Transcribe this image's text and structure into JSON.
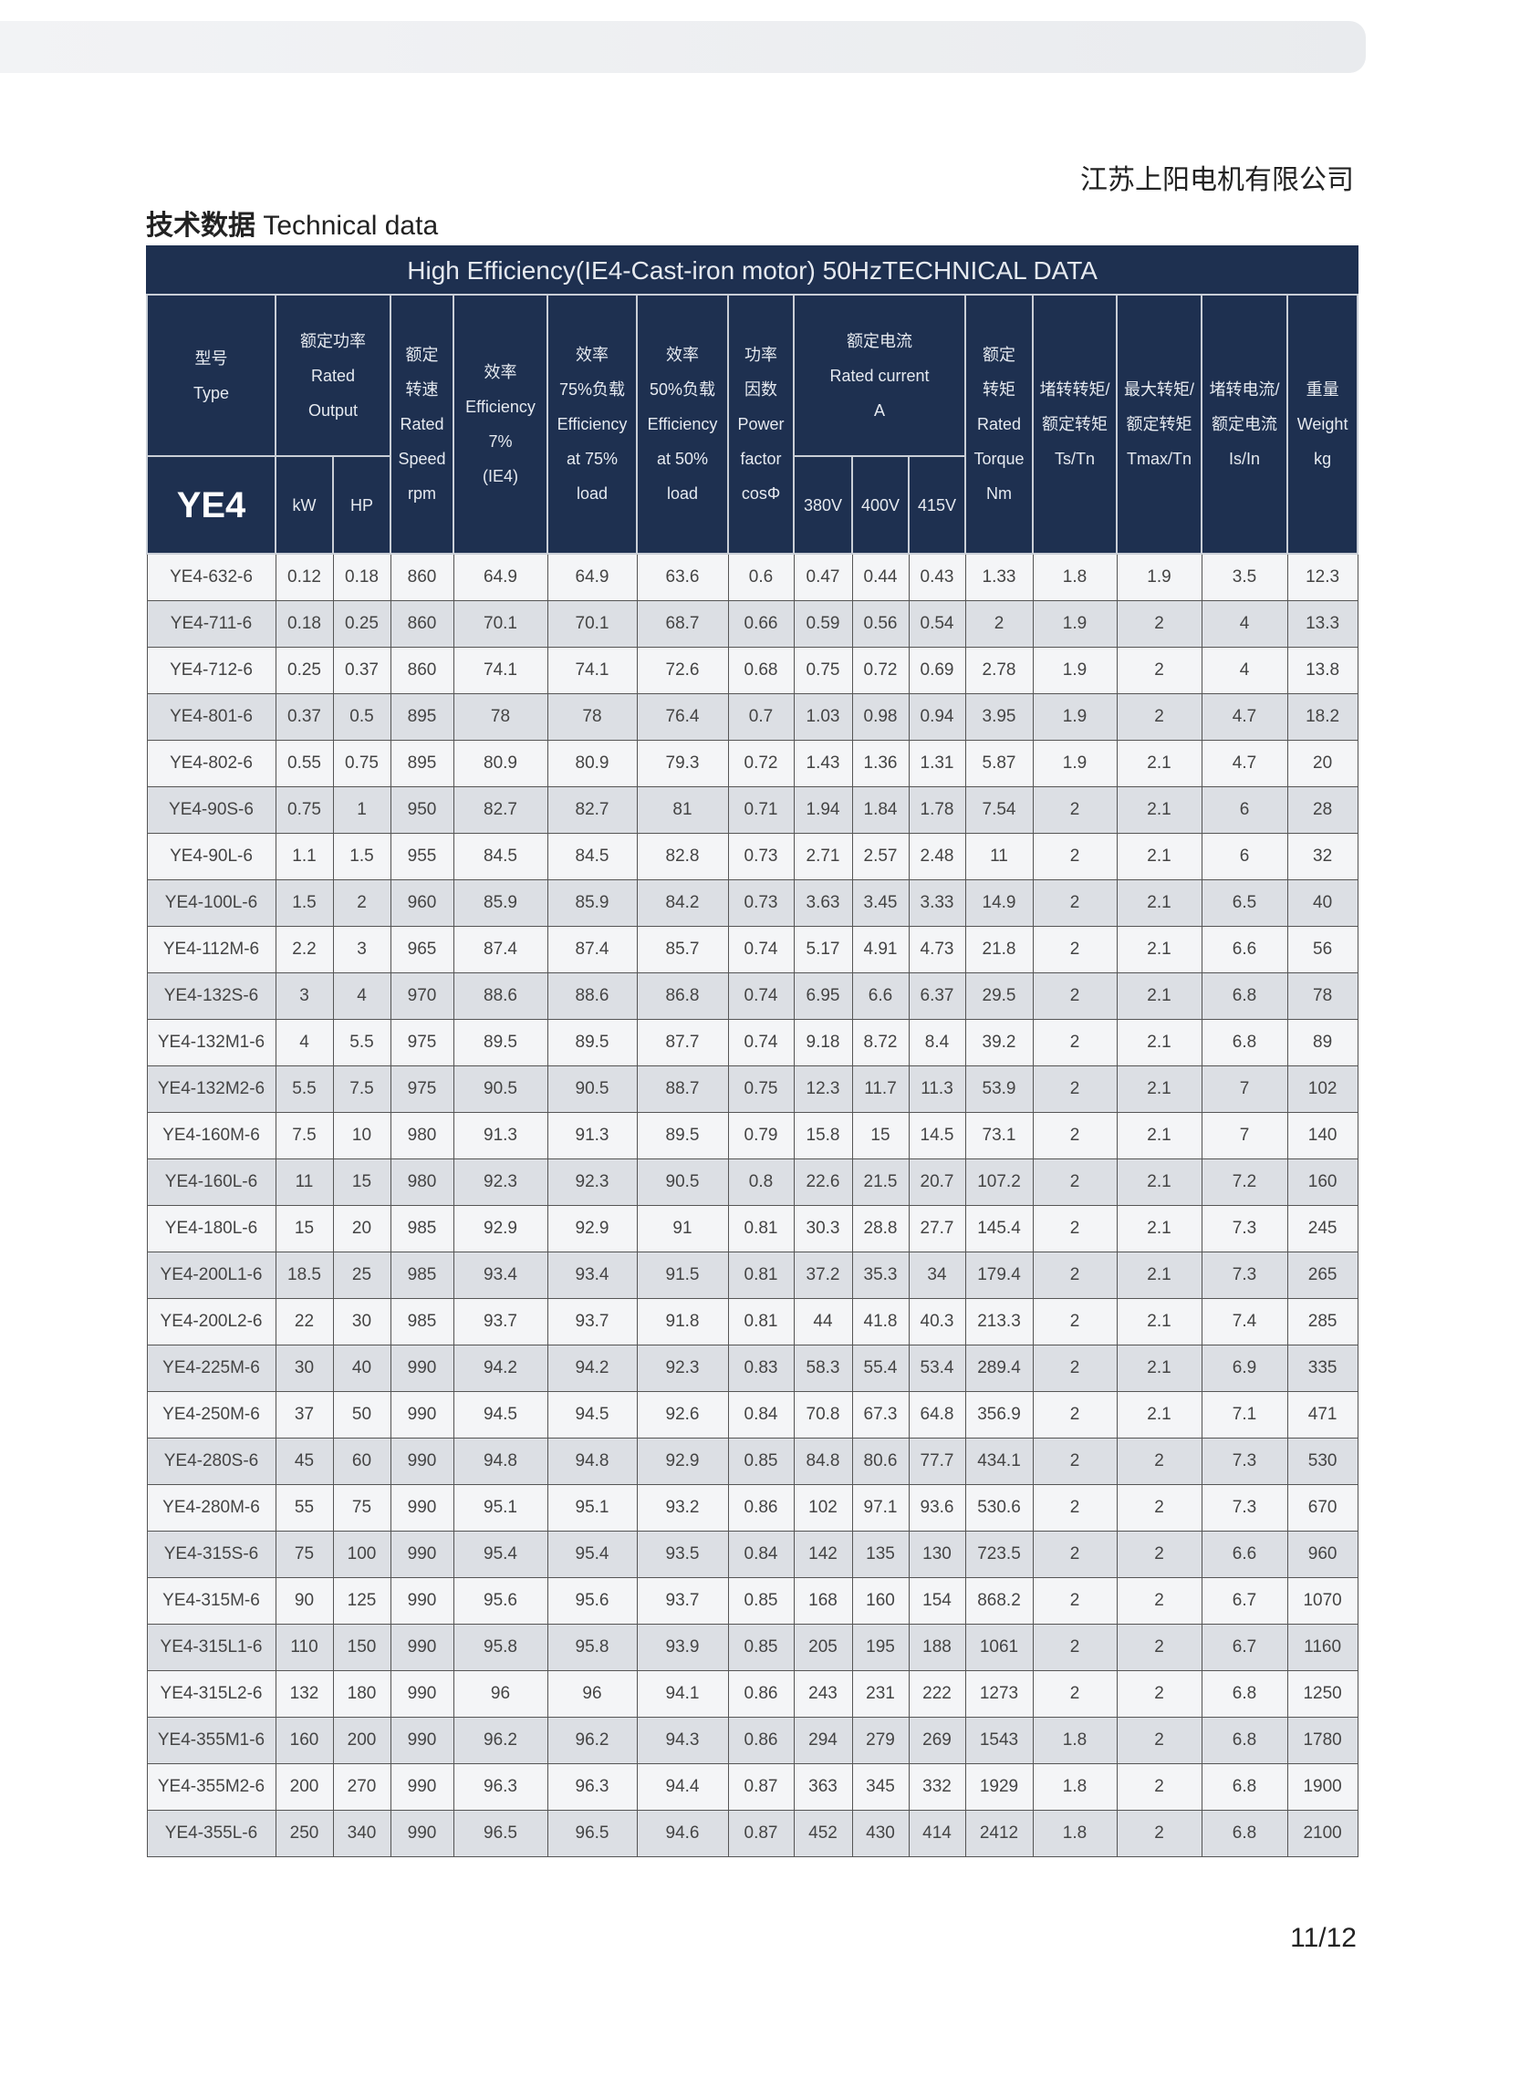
{
  "company": "江苏上阳电机有限公司",
  "section_title_cn": "技术数据",
  "section_title_en": "Technical data",
  "page_number": "11/12",
  "table": {
    "title": "High Efficiency(IE4-Cast-iron motor) 50HzTECHNICAL DATA",
    "series": "YE4",
    "headers": {
      "type": [
        "型号",
        "Type"
      ],
      "output": [
        "额定功率",
        "Rated",
        "Output"
      ],
      "kw": "kW",
      "hp": "HP",
      "speed": [
        "额定",
        "转速",
        "Rated",
        "Speed",
        "rpm"
      ],
      "eff": [
        "效率",
        "Efficiency",
        "7%",
        "(IE4)"
      ],
      "eff75": [
        "效率",
        "75%负载",
        "Efficiency",
        "at 75%",
        "load"
      ],
      "eff50": [
        "效率",
        "50%负载",
        "Efficiency",
        "at 50%",
        "load"
      ],
      "pf": [
        "功率",
        "因数",
        "Power",
        "factor",
        "cosΦ"
      ],
      "current": [
        "额定电流",
        "Rated current",
        "A"
      ],
      "v380": "380V",
      "v400": "400V",
      "v415": "415V",
      "torque": [
        "额定",
        "转矩",
        "Rated",
        "Torque",
        "Nm"
      ],
      "tstn": [
        "堵转转矩/",
        "额定转矩",
        "Ts/Tn"
      ],
      "tmax": [
        "最大转矩/",
        "额定转矩",
        "Tmax/Tn"
      ],
      "isin": [
        "堵转电流/",
        "额定电流",
        "Is/In"
      ],
      "weight": [
        "重量",
        "Weight",
        "kg"
      ]
    },
    "rows": [
      [
        "YE4-632-6",
        "0.12",
        "0.18",
        "860",
        "64.9",
        "64.9",
        "63.6",
        "0.6",
        "0.47",
        "0.44",
        "0.43",
        "1.33",
        "1.8",
        "1.9",
        "3.5",
        "12.3"
      ],
      [
        "YE4-711-6",
        "0.18",
        "0.25",
        "860",
        "70.1",
        "70.1",
        "68.7",
        "0.66",
        "0.59",
        "0.56",
        "0.54",
        "2",
        "1.9",
        "2",
        "4",
        "13.3"
      ],
      [
        "YE4-712-6",
        "0.25",
        "0.37",
        "860",
        "74.1",
        "74.1",
        "72.6",
        "0.68",
        "0.75",
        "0.72",
        "0.69",
        "2.78",
        "1.9",
        "2",
        "4",
        "13.8"
      ],
      [
        "YE4-801-6",
        "0.37",
        "0.5",
        "895",
        "78",
        "78",
        "76.4",
        "0.7",
        "1.03",
        "0.98",
        "0.94",
        "3.95",
        "1.9",
        "2",
        "4.7",
        "18.2"
      ],
      [
        "YE4-802-6",
        "0.55",
        "0.75",
        "895",
        "80.9",
        "80.9",
        "79.3",
        "0.72",
        "1.43",
        "1.36",
        "1.31",
        "5.87",
        "1.9",
        "2.1",
        "4.7",
        "20"
      ],
      [
        "YE4-90S-6",
        "0.75",
        "1",
        "950",
        "82.7",
        "82.7",
        "81",
        "0.71",
        "1.94",
        "1.84",
        "1.78",
        "7.54",
        "2",
        "2.1",
        "6",
        "28"
      ],
      [
        "YE4-90L-6",
        "1.1",
        "1.5",
        "955",
        "84.5",
        "84.5",
        "82.8",
        "0.73",
        "2.71",
        "2.57",
        "2.48",
        "11",
        "2",
        "2.1",
        "6",
        "32"
      ],
      [
        "YE4-100L-6",
        "1.5",
        "2",
        "960",
        "85.9",
        "85.9",
        "84.2",
        "0.73",
        "3.63",
        "3.45",
        "3.33",
        "14.9",
        "2",
        "2.1",
        "6.5",
        "40"
      ],
      [
        "YE4-112M-6",
        "2.2",
        "3",
        "965",
        "87.4",
        "87.4",
        "85.7",
        "0.74",
        "5.17",
        "4.91",
        "4.73",
        "21.8",
        "2",
        "2.1",
        "6.6",
        "56"
      ],
      [
        "YE4-132S-6",
        "3",
        "4",
        "970",
        "88.6",
        "88.6",
        "86.8",
        "0.74",
        "6.95",
        "6.6",
        "6.37",
        "29.5",
        "2",
        "2.1",
        "6.8",
        "78"
      ],
      [
        "YE4-132M1-6",
        "4",
        "5.5",
        "975",
        "89.5",
        "89.5",
        "87.7",
        "0.74",
        "9.18",
        "8.72",
        "8.4",
        "39.2",
        "2",
        "2.1",
        "6.8",
        "89"
      ],
      [
        "YE4-132M2-6",
        "5.5",
        "7.5",
        "975",
        "90.5",
        "90.5",
        "88.7",
        "0.75",
        "12.3",
        "11.7",
        "11.3",
        "53.9",
        "2",
        "2.1",
        "7",
        "102"
      ],
      [
        "YE4-160M-6",
        "7.5",
        "10",
        "980",
        "91.3",
        "91.3",
        "89.5",
        "0.79",
        "15.8",
        "15",
        "14.5",
        "73.1",
        "2",
        "2.1",
        "7",
        "140"
      ],
      [
        "YE4-160L-6",
        "11",
        "15",
        "980",
        "92.3",
        "92.3",
        "90.5",
        "0.8",
        "22.6",
        "21.5",
        "20.7",
        "107.2",
        "2",
        "2.1",
        "7.2",
        "160"
      ],
      [
        "YE4-180L-6",
        "15",
        "20",
        "985",
        "92.9",
        "92.9",
        "91",
        "0.81",
        "30.3",
        "28.8",
        "27.7",
        "145.4",
        "2",
        "2.1",
        "7.3",
        "245"
      ],
      [
        "YE4-200L1-6",
        "18.5",
        "25",
        "985",
        "93.4",
        "93.4",
        "91.5",
        "0.81",
        "37.2",
        "35.3",
        "34",
        "179.4",
        "2",
        "2.1",
        "7.3",
        "265"
      ],
      [
        "YE4-200L2-6",
        "22",
        "30",
        "985",
        "93.7",
        "93.7",
        "91.8",
        "0.81",
        "44",
        "41.8",
        "40.3",
        "213.3",
        "2",
        "2.1",
        "7.4",
        "285"
      ],
      [
        "YE4-225M-6",
        "30",
        "40",
        "990",
        "94.2",
        "94.2",
        "92.3",
        "0.83",
        "58.3",
        "55.4",
        "53.4",
        "289.4",
        "2",
        "2.1",
        "6.9",
        "335"
      ],
      [
        "YE4-250M-6",
        "37",
        "50",
        "990",
        "94.5",
        "94.5",
        "92.6",
        "0.84",
        "70.8",
        "67.3",
        "64.8",
        "356.9",
        "2",
        "2.1",
        "7.1",
        "471"
      ],
      [
        "YE4-280S-6",
        "45",
        "60",
        "990",
        "94.8",
        "94.8",
        "92.9",
        "0.85",
        "84.8",
        "80.6",
        "77.7",
        "434.1",
        "2",
        "2",
        "7.3",
        "530"
      ],
      [
        "YE4-280M-6",
        "55",
        "75",
        "990",
        "95.1",
        "95.1",
        "93.2",
        "0.86",
        "102",
        "97.1",
        "93.6",
        "530.6",
        "2",
        "2",
        "7.3",
        "670"
      ],
      [
        "YE4-315S-6",
        "75",
        "100",
        "990",
        "95.4",
        "95.4",
        "93.5",
        "0.84",
        "142",
        "135",
        "130",
        "723.5",
        "2",
        "2",
        "6.6",
        "960"
      ],
      [
        "YE4-315M-6",
        "90",
        "125",
        "990",
        "95.6",
        "95.6",
        "93.7",
        "0.85",
        "168",
        "160",
        "154",
        "868.2",
        "2",
        "2",
        "6.7",
        "1070"
      ],
      [
        "YE4-315L1-6",
        "110",
        "150",
        "990",
        "95.8",
        "95.8",
        "93.9",
        "0.85",
        "205",
        "195",
        "188",
        "1061",
        "2",
        "2",
        "6.7",
        "1160"
      ],
      [
        "YE4-315L2-6",
        "132",
        "180",
        "990",
        "96",
        "96",
        "94.1",
        "0.86",
        "243",
        "231",
        "222",
        "1273",
        "2",
        "2",
        "6.8",
        "1250"
      ],
      [
        "YE4-355M1-6",
        "160",
        "200",
        "990",
        "96.2",
        "96.2",
        "94.3",
        "0.86",
        "294",
        "279",
        "269",
        "1543",
        "1.8",
        "2",
        "6.8",
        "1780"
      ],
      [
        "YE4-355M2-6",
        "200",
        "270",
        "990",
        "96.3",
        "96.3",
        "94.4",
        "0.87",
        "363",
        "345",
        "332",
        "1929",
        "1.8",
        "2",
        "6.8",
        "1900"
      ],
      [
        "YE4-355L-6",
        "250",
        "340",
        "990",
        "96.5",
        "96.5",
        "94.6",
        "0.87",
        "452",
        "430",
        "414",
        "2412",
        "1.8",
        "2",
        "6.8",
        "2100"
      ]
    ]
  }
}
